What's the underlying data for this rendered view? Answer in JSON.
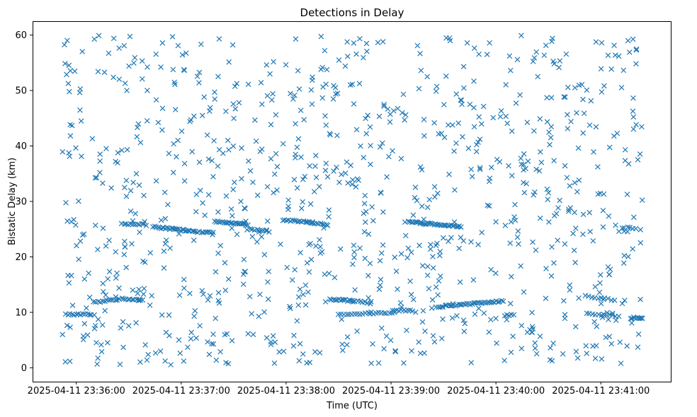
{
  "chart_data": {
    "type": "scatter",
    "title": "Detections in Delay",
    "xlabel": "Time (UTC)",
    "ylabel": "Bistatic Delay (km)",
    "marker": "x",
    "color": "#1f77b4",
    "x_unit": "seconds after 2025-04-11 23:36:00 UTC",
    "xlim": [
      -25,
      340
    ],
    "ylim": [
      -2.5,
      62.5
    ],
    "x_ticks": [
      {
        "value": 0,
        "label": "2025-04-11 23:36:00"
      },
      {
        "value": 60,
        "label": "2025-04-11 23:37:00"
      },
      {
        "value": 120,
        "label": "2025-04-11 23:38:00"
      },
      {
        "value": 180,
        "label": "2025-04-11 23:39:00"
      },
      {
        "value": 240,
        "label": "2025-04-11 23:40:00"
      },
      {
        "value": 300,
        "label": "2025-04-11 23:41:00"
      }
    ],
    "y_ticks": [
      {
        "value": 0,
        "label": "0"
      },
      {
        "value": 10,
        "label": "10"
      },
      {
        "value": 20,
        "label": "20"
      },
      {
        "value": 30,
        "label": "30"
      },
      {
        "value": 40,
        "label": "40"
      },
      {
        "value": 50,
        "label": "50"
      },
      {
        "value": 60,
        "label": "60"
      }
    ],
    "track_segments": [
      {
        "x": [
          -6,
          10
        ],
        "y": [
          9.6,
          9.6
        ],
        "n": 14
      },
      {
        "x": [
          10,
          26
        ],
        "y": [
          11.8,
          12.4
        ],
        "n": 14
      },
      {
        "x": [
          27,
          38
        ],
        "y": [
          12.4,
          12.1
        ],
        "n": 10
      },
      {
        "x": [
          26,
          40
        ],
        "y": [
          26.0,
          25.8
        ],
        "n": 12
      },
      {
        "x": [
          44,
          64
        ],
        "y": [
          25.4,
          24.7
        ],
        "n": 24
      },
      {
        "x": [
          64,
          78
        ],
        "y": [
          24.6,
          24.4
        ],
        "n": 14
      },
      {
        "x": [
          79,
          98
        ],
        "y": [
          26.4,
          25.8
        ],
        "n": 22
      },
      {
        "x": [
          98,
          110
        ],
        "y": [
          25.0,
          24.6
        ],
        "n": 10
      },
      {
        "x": [
          118,
          132
        ],
        "y": [
          26.6,
          26.3
        ],
        "n": 14
      },
      {
        "x": [
          132,
          144
        ],
        "y": [
          26.3,
          25.8
        ],
        "n": 12
      },
      {
        "x": [
          145,
          158
        ],
        "y": [
          12.3,
          12.1
        ],
        "n": 14
      },
      {
        "x": [
          150,
          182
        ],
        "y": [
          9.5,
          10.0
        ],
        "n": 22
      },
      {
        "x": [
          158,
          168
        ],
        "y": [
          12.0,
          11.7
        ],
        "n": 8
      },
      {
        "x": [
          181,
          192
        ],
        "y": [
          10.4,
          10.3
        ],
        "n": 10
      },
      {
        "x": [
          190,
          220
        ],
        "y": [
          26.3,
          25.5
        ],
        "n": 34
      },
      {
        "x": [
          206,
          244
        ],
        "y": [
          11.0,
          12.0
        ],
        "n": 40
      },
      {
        "x": [
          245,
          250
        ],
        "y": [
          9.5,
          9.5
        ],
        "n": 5
      },
      {
        "x": [
          292,
          310
        ],
        "y": [
          9.8,
          9.3
        ],
        "n": 12
      },
      {
        "x": [
          291,
          308
        ],
        "y": [
          12.9,
          12.2
        ],
        "n": 10
      },
      {
        "x": [
          312,
          320
        ],
        "y": [
          25.3,
          25.2
        ],
        "n": 6
      },
      {
        "x": [
          317,
          324
        ],
        "y": [
          9.0,
          9.0
        ],
        "n": 10
      }
    ],
    "noise_detections": {
      "count": 950,
      "x_range": [
        -8,
        324
      ],
      "y_range": [
        0.5,
        60
      ],
      "distribution": "approximately uniform clutter"
    }
  }
}
